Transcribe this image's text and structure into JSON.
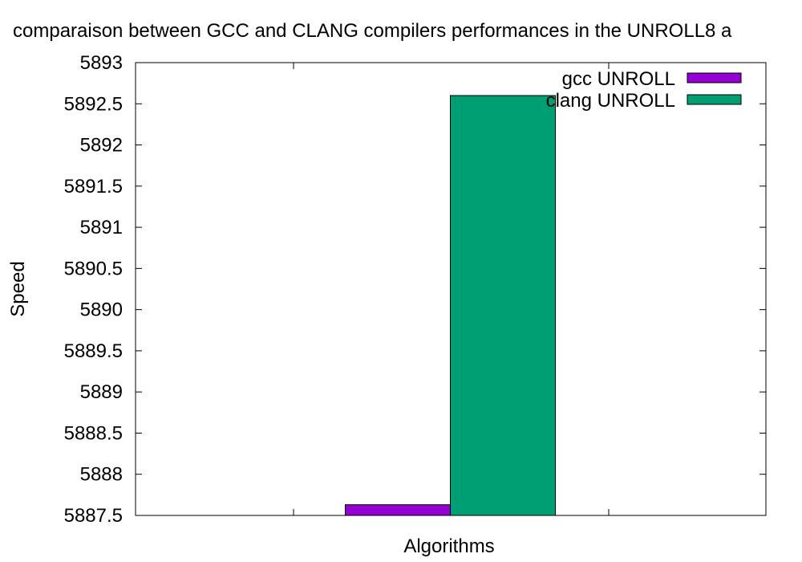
{
  "chart_data": {
    "type": "bar",
    "title": "comparaison between GCC and CLANG compilers performances in the UNROLL8 a",
    "xlabel": "Algorithms",
    "ylabel": "Speed",
    "ylim": [
      5887.5,
      5893
    ],
    "y_ticks": [
      5887.5,
      5888,
      5888.5,
      5889,
      5889.5,
      5890,
      5890.5,
      5891,
      5891.5,
      5892,
      5892.5,
      5893
    ],
    "y_tick_labels": [
      "5887.5",
      "5888",
      "5888.5",
      "5889",
      "5889.5",
      "5890",
      "5890.5",
      "5891",
      "5891.5",
      "5892",
      "5892.5",
      "5893"
    ],
    "categories": [
      ""
    ],
    "series": [
      {
        "name": "gcc UNROLL",
        "values": [
          5887.63
        ],
        "color": "#9400d3"
      },
      {
        "name": "clang UNROLL",
        "values": [
          5892.6
        ],
        "color": "#009e73"
      }
    ],
    "legend": "top-right",
    "grid": false
  }
}
